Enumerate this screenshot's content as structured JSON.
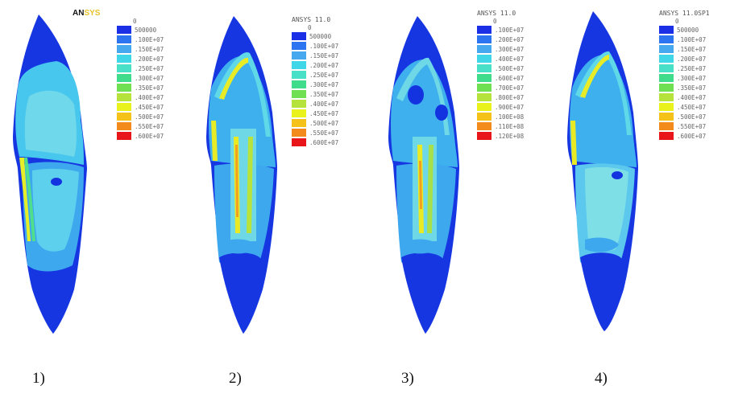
{
  "colors": {
    "blue_dark": "#1433e0",
    "blue": "#2c6cf0",
    "blue_light": "#4a9cf0",
    "cyan": "#47d6ee",
    "cyan_light": "#8ee8e2",
    "green": "#3fd98a",
    "green_yellow": "#a8e04a",
    "yellow": "#f1f018",
    "orange": "#f2a020",
    "red": "#e81818"
  },
  "legend_colors": [
    "#1a2fe6",
    "#2c74f0",
    "#46a8ef",
    "#3fd6e8",
    "#49e0c8",
    "#3fdc8c",
    "#6fe052",
    "#b6e23c",
    "#eaf21c",
    "#f5c21a",
    "#f28a1c",
    "#e8161a"
  ],
  "panels": [
    {
      "label": "1)",
      "legend_title_an": "AN",
      "legend_title_sys": "SYS",
      "legend_values": [
        "0",
        "500000",
        ".100E+07",
        ".150E+07",
        ".200E+07",
        ".250E+07",
        ".300E+07",
        ".350E+07",
        ".400E+07",
        ".450E+07",
        ".500E+07",
        ".550E+07",
        ".600E+07"
      ]
    },
    {
      "label": "2)",
      "legend_title": "ANSYS 11.0",
      "legend_values": [
        "0",
        "500000",
        ".100E+07",
        ".150E+07",
        ".200E+07",
        ".250E+07",
        ".300E+07",
        ".350E+07",
        ".400E+07",
        ".450E+07",
        ".500E+07",
        ".550E+07",
        ".600E+07"
      ]
    },
    {
      "label": "3)",
      "legend_title": "ANSYS 11.0",
      "legend_values": [
        "0",
        ".100E+07",
        ".200E+07",
        ".300E+07",
        ".400E+07",
        ".500E+07",
        ".600E+07",
        ".700E+07",
        ".800E+07",
        ".900E+07",
        ".100E+08",
        ".110E+08",
        ".120E+08"
      ]
    },
    {
      "label": "4)",
      "legend_title": "ANSYS 11.0SP1",
      "legend_values": [
        "0",
        "500000",
        ".100E+07",
        ".150E+07",
        ".200E+07",
        ".250E+07",
        ".300E+07",
        ".350E+07",
        ".400E+07",
        ".450E+07",
        ".500E+07",
        ".550E+07",
        ".600E+07"
      ]
    }
  ]
}
